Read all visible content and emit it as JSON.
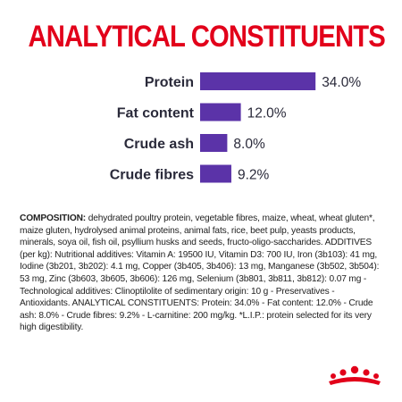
{
  "header": {
    "title": "ANALYTICAL CONSTITUENTS"
  },
  "colors": {
    "title": "#e2001a",
    "bar": "#5b33a8",
    "logo": "#e2001a"
  },
  "chart_data": {
    "type": "bar",
    "orientation": "horizontal",
    "categories": [
      "Protein",
      "Fat content",
      "Crude ash",
      "Crude fibres"
    ],
    "values": [
      34.0,
      12.0,
      8.0,
      9.2
    ],
    "value_labels": [
      "34.0%",
      "12.0%",
      "8.0%",
      "9.2%"
    ],
    "unit": "%",
    "grid": false,
    "legend": "none"
  },
  "composition": {
    "label": "COMPOSITION:",
    "text": " dehydrated poultry protein, vegetable fibres, maize, wheat, wheat gluten*, maize gluten, hydrolysed animal proteins, animal fats, rice, beet pulp, yeasts products, minerals, soya oil, fish oil, psyllium husks and seeds, fructo-oligo-saccharides. ADDITIVES (per kg): Nutritional additives: Vitamin A: 19500 IU, Vitamin D3: 700 IU, Iron (3b103): 41 mg, Iodine (3b201, 3b202): 4.1 mg, Copper (3b405, 3b406): 13 mg, Manganese (3b502, 3b504): 53 mg, Zinc (3b603, 3b605, 3b606): 126 mg, Selenium (3b801, 3b811, 3b812): 0.07 mg - Technological additives: Clinoptilolite of sedimentary origin: 10 g - Preservatives - Antioxidants. ANALYTICAL CONSTITUENTS: Protein: 34.0% - Fat content: 12.0% - Crude ash: 8.0% - Crude fibres: 9.2% - L-carnitine: 200 mg/kg. *L.I.P.: protein selected for its very high digestibility."
  },
  "logo": {
    "icon": "crown-icon"
  }
}
